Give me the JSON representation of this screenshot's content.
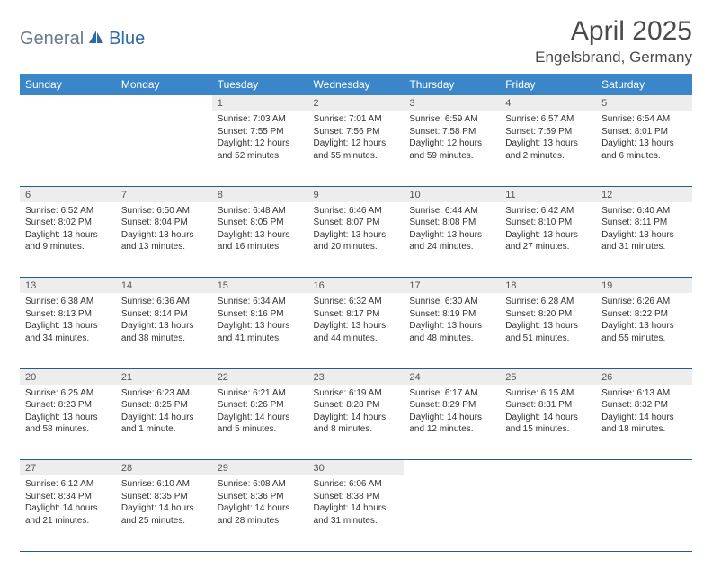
{
  "logo": {
    "part1": "General",
    "part2": "Blue"
  },
  "title": "April 2025",
  "location": "Engelsbrand, Germany",
  "colors": {
    "header_bg": "#3b86c8",
    "header_fg": "#ffffff",
    "daynum_bg": "#ededed",
    "row_border": "#2a5a8a",
    "text": "#333333",
    "title_color": "#4a4a4a",
    "logo_gray": "#6b7a89",
    "logo_blue": "#2f6aa8"
  },
  "columns": [
    "Sunday",
    "Monday",
    "Tuesday",
    "Wednesday",
    "Thursday",
    "Friday",
    "Saturday"
  ],
  "weeks": [
    [
      null,
      null,
      {
        "n": "1",
        "l1": "Sunrise: 7:03 AM",
        "l2": "Sunset: 7:55 PM",
        "l3": "Daylight: 12 hours and 52 minutes."
      },
      {
        "n": "2",
        "l1": "Sunrise: 7:01 AM",
        "l2": "Sunset: 7:56 PM",
        "l3": "Daylight: 12 hours and 55 minutes."
      },
      {
        "n": "3",
        "l1": "Sunrise: 6:59 AM",
        "l2": "Sunset: 7:58 PM",
        "l3": "Daylight: 12 hours and 59 minutes."
      },
      {
        "n": "4",
        "l1": "Sunrise: 6:57 AM",
        "l2": "Sunset: 7:59 PM",
        "l3": "Daylight: 13 hours and 2 minutes."
      },
      {
        "n": "5",
        "l1": "Sunrise: 6:54 AM",
        "l2": "Sunset: 8:01 PM",
        "l3": "Daylight: 13 hours and 6 minutes."
      }
    ],
    [
      {
        "n": "6",
        "l1": "Sunrise: 6:52 AM",
        "l2": "Sunset: 8:02 PM",
        "l3": "Daylight: 13 hours and 9 minutes."
      },
      {
        "n": "7",
        "l1": "Sunrise: 6:50 AM",
        "l2": "Sunset: 8:04 PM",
        "l3": "Daylight: 13 hours and 13 minutes."
      },
      {
        "n": "8",
        "l1": "Sunrise: 6:48 AM",
        "l2": "Sunset: 8:05 PM",
        "l3": "Daylight: 13 hours and 16 minutes."
      },
      {
        "n": "9",
        "l1": "Sunrise: 6:46 AM",
        "l2": "Sunset: 8:07 PM",
        "l3": "Daylight: 13 hours and 20 minutes."
      },
      {
        "n": "10",
        "l1": "Sunrise: 6:44 AM",
        "l2": "Sunset: 8:08 PM",
        "l3": "Daylight: 13 hours and 24 minutes."
      },
      {
        "n": "11",
        "l1": "Sunrise: 6:42 AM",
        "l2": "Sunset: 8:10 PM",
        "l3": "Daylight: 13 hours and 27 minutes."
      },
      {
        "n": "12",
        "l1": "Sunrise: 6:40 AM",
        "l2": "Sunset: 8:11 PM",
        "l3": "Daylight: 13 hours and 31 minutes."
      }
    ],
    [
      {
        "n": "13",
        "l1": "Sunrise: 6:38 AM",
        "l2": "Sunset: 8:13 PM",
        "l3": "Daylight: 13 hours and 34 minutes."
      },
      {
        "n": "14",
        "l1": "Sunrise: 6:36 AM",
        "l2": "Sunset: 8:14 PM",
        "l3": "Daylight: 13 hours and 38 minutes."
      },
      {
        "n": "15",
        "l1": "Sunrise: 6:34 AM",
        "l2": "Sunset: 8:16 PM",
        "l3": "Daylight: 13 hours and 41 minutes."
      },
      {
        "n": "16",
        "l1": "Sunrise: 6:32 AM",
        "l2": "Sunset: 8:17 PM",
        "l3": "Daylight: 13 hours and 44 minutes."
      },
      {
        "n": "17",
        "l1": "Sunrise: 6:30 AM",
        "l2": "Sunset: 8:19 PM",
        "l3": "Daylight: 13 hours and 48 minutes."
      },
      {
        "n": "18",
        "l1": "Sunrise: 6:28 AM",
        "l2": "Sunset: 8:20 PM",
        "l3": "Daylight: 13 hours and 51 minutes."
      },
      {
        "n": "19",
        "l1": "Sunrise: 6:26 AM",
        "l2": "Sunset: 8:22 PM",
        "l3": "Daylight: 13 hours and 55 minutes."
      }
    ],
    [
      {
        "n": "20",
        "l1": "Sunrise: 6:25 AM",
        "l2": "Sunset: 8:23 PM",
        "l3": "Daylight: 13 hours and 58 minutes."
      },
      {
        "n": "21",
        "l1": "Sunrise: 6:23 AM",
        "l2": "Sunset: 8:25 PM",
        "l3": "Daylight: 14 hours and 1 minute."
      },
      {
        "n": "22",
        "l1": "Sunrise: 6:21 AM",
        "l2": "Sunset: 8:26 PM",
        "l3": "Daylight: 14 hours and 5 minutes."
      },
      {
        "n": "23",
        "l1": "Sunrise: 6:19 AM",
        "l2": "Sunset: 8:28 PM",
        "l3": "Daylight: 14 hours and 8 minutes."
      },
      {
        "n": "24",
        "l1": "Sunrise: 6:17 AM",
        "l2": "Sunset: 8:29 PM",
        "l3": "Daylight: 14 hours and 12 minutes."
      },
      {
        "n": "25",
        "l1": "Sunrise: 6:15 AM",
        "l2": "Sunset: 8:31 PM",
        "l3": "Daylight: 14 hours and 15 minutes."
      },
      {
        "n": "26",
        "l1": "Sunrise: 6:13 AM",
        "l2": "Sunset: 8:32 PM",
        "l3": "Daylight: 14 hours and 18 minutes."
      }
    ],
    [
      {
        "n": "27",
        "l1": "Sunrise: 6:12 AM",
        "l2": "Sunset: 8:34 PM",
        "l3": "Daylight: 14 hours and 21 minutes."
      },
      {
        "n": "28",
        "l1": "Sunrise: 6:10 AM",
        "l2": "Sunset: 8:35 PM",
        "l3": "Daylight: 14 hours and 25 minutes."
      },
      {
        "n": "29",
        "l1": "Sunrise: 6:08 AM",
        "l2": "Sunset: 8:36 PM",
        "l3": "Daylight: 14 hours and 28 minutes."
      },
      {
        "n": "30",
        "l1": "Sunrise: 6:06 AM",
        "l2": "Sunset: 8:38 PM",
        "l3": "Daylight: 14 hours and 31 minutes."
      },
      null,
      null,
      null
    ]
  ]
}
